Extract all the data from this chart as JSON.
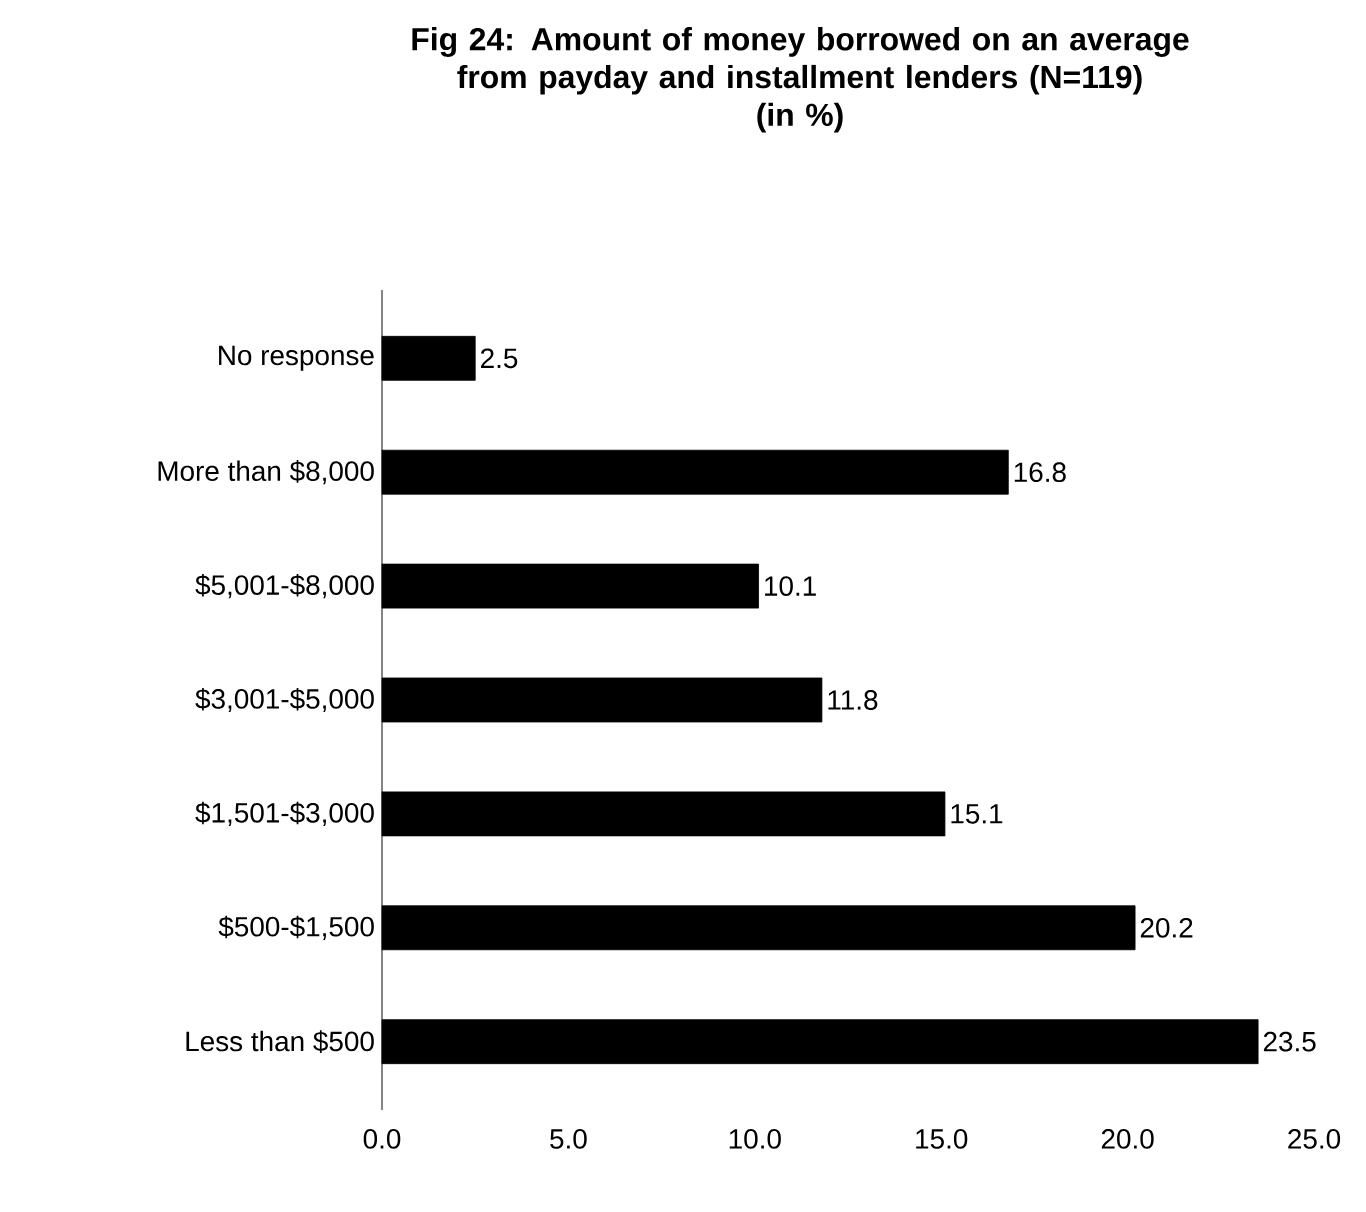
{
  "chart_data": {
    "type": "bar",
    "orientation": "horizontal",
    "title": "Fig 24: Amount of money borrowed on an average from payday and installment lenders (N=119)",
    "subtitle": "(in %)",
    "categories": [
      "No response",
      "More than $8,000",
      "$5,001-$8,000",
      "$3,001-$5,000",
      "$1,501-$3,000",
      "$500-$1,500",
      "Less than $500"
    ],
    "values": [
      2.5,
      16.8,
      10.1,
      11.8,
      15.1,
      20.2,
      23.5
    ],
    "color": "#000000",
    "xlim": [
      0,
      25
    ],
    "xticks": [
      {
        "value": 0,
        "label": "0.0"
      },
      {
        "value": 5,
        "label": "5.0"
      },
      {
        "value": 10,
        "label": "10.0"
      },
      {
        "value": 15,
        "label": "15.0"
      },
      {
        "value": 20,
        "label": "20.0"
      },
      {
        "value": 25,
        "label": "25.0"
      }
    ],
    "data_labels": true
  }
}
